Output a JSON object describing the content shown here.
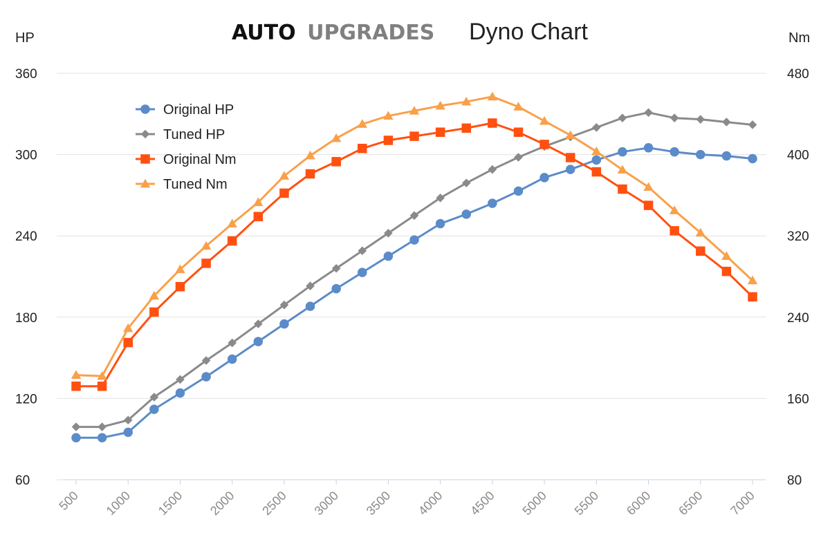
{
  "header": {
    "brand_primary": "AUTO",
    "brand_secondary": "UPGRADES",
    "subtitle": "Dyno Chart",
    "left_unit": "HP",
    "right_unit": "Nm"
  },
  "chart_data": {
    "type": "line",
    "title": "Dyno Chart",
    "x": [
      500,
      750,
      1000,
      1250,
      1500,
      1750,
      2000,
      2250,
      2500,
      2750,
      3000,
      3250,
      3500,
      3750,
      4000,
      4250,
      4500,
      4750,
      5000,
      5250,
      5500,
      5750,
      6000,
      6250,
      6500,
      6750,
      7000
    ],
    "x_ticks": [
      "500",
      "1000",
      "1500",
      "2000",
      "2500",
      "3000",
      "3500",
      "4000",
      "4500",
      "5000",
      "5500",
      "6000",
      "6500",
      "7000"
    ],
    "x_tick_values": [
      500,
      1000,
      1500,
      2000,
      2500,
      3000,
      3500,
      4000,
      4500,
      5000,
      5500,
      6000,
      6500,
      7000
    ],
    "xlim": [
      500,
      7000
    ],
    "y_left": {
      "label": "HP",
      "lim": [
        60,
        360
      ],
      "ticks": [
        "60",
        "120",
        "180",
        "240",
        "300",
        "360"
      ],
      "tick_values": [
        60,
        120,
        180,
        240,
        300,
        360
      ]
    },
    "y_right": {
      "label": "Nm",
      "lim": [
        80,
        480
      ],
      "ticks": [
        "80",
        "160",
        "240",
        "320",
        "400",
        "480"
      ],
      "tick_values": [
        80,
        160,
        240,
        320,
        400,
        480
      ]
    },
    "grid": true,
    "legend_position": "top-left",
    "series": [
      {
        "name": "Original HP",
        "axis": "left",
        "color": "#5b8bc9",
        "marker": "circle",
        "values": [
          91,
          91,
          95,
          112,
          124,
          136,
          149,
          162,
          175,
          188,
          201,
          213,
          225,
          237,
          249,
          256,
          264,
          273,
          283,
          289,
          296,
          302,
          305,
          302,
          300,
          299,
          297
        ]
      },
      {
        "name": "Tuned HP",
        "axis": "left",
        "color": "#8a8a8a",
        "marker": "diamond",
        "values": [
          99,
          99,
          104,
          121,
          134,
          148,
          161,
          175,
          189,
          203,
          216,
          229,
          242,
          255,
          268,
          279,
          289,
          298,
          306,
          313,
          320,
          327,
          331,
          327,
          326,
          324,
          322
        ]
      },
      {
        "name": "Original Nm",
        "axis": "right",
        "color": "#ff5010",
        "marker": "square",
        "values": [
          172,
          172,
          215,
          245,
          270,
          293,
          315,
          339,
          362,
          381,
          393,
          406,
          414,
          418,
          422,
          426,
          431,
          422,
          410,
          397,
          383,
          366,
          350,
          325,
          305,
          285,
          260
        ]
      },
      {
        "name": "Tuned Nm",
        "axis": "right",
        "color": "#f9a04a",
        "marker": "triangle",
        "values": [
          183,
          182,
          229,
          261,
          287,
          310,
          332,
          353,
          379,
          399,
          416,
          430,
          438,
          443,
          448,
          452,
          457,
          447,
          433,
          419,
          403,
          385,
          368,
          345,
          323,
          300,
          276
        ]
      }
    ]
  }
}
